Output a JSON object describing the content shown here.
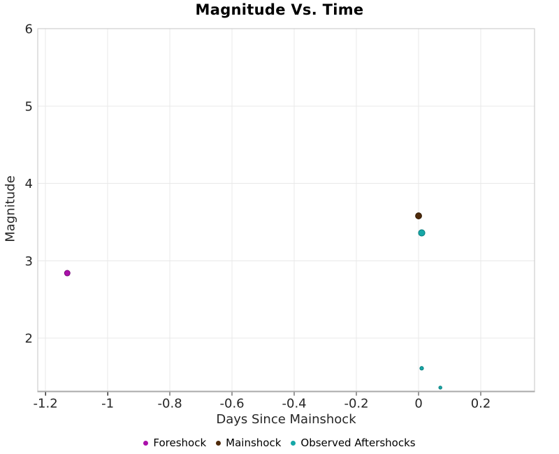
{
  "chart_data": {
    "type": "scatter",
    "title": "Magnitude Vs. Time",
    "xlabel": "Days Since Mainshock",
    "ylabel": "Magnitude",
    "xlim": [
      -1.225,
      0.373
    ],
    "ylim": [
      1.31,
      6
    ],
    "grid": true,
    "legend_position": "bottom-center",
    "x_ticks": [
      {
        "v": -1.2,
        "label": "-1.2"
      },
      {
        "v": -1.0,
        "label": "-1"
      },
      {
        "v": -0.8,
        "label": "-0.8"
      },
      {
        "v": -0.6,
        "label": "-0.6"
      },
      {
        "v": -0.4,
        "label": "-0.4"
      },
      {
        "v": -0.2,
        "label": "-0.2"
      },
      {
        "v": 0.0,
        "label": "0"
      },
      {
        "v": 0.2,
        "label": "0.2"
      }
    ],
    "y_ticks": [
      {
        "v": 2,
        "label": "2"
      },
      {
        "v": 3,
        "label": "3"
      },
      {
        "v": 4,
        "label": "4"
      },
      {
        "v": 5,
        "label": "5"
      },
      {
        "v": 6,
        "label": "6"
      }
    ],
    "series": [
      {
        "name": "Foreshock",
        "color": "#ab10ab",
        "stroke": "#7a0b7a",
        "points": [
          {
            "x": -1.13,
            "y": 2.84,
            "r": 4.0
          }
        ]
      },
      {
        "name": "Mainshock",
        "color": "#4f2a0a",
        "stroke": "#2e1903",
        "points": [
          {
            "x": 0.0,
            "y": 3.58,
            "r": 4.4
          }
        ]
      },
      {
        "name": "Observed Aftershocks",
        "color": "#16a7a7",
        "stroke": "#0b7d7d",
        "points": [
          {
            "x": 0.01,
            "y": 3.36,
            "r": 4.6
          },
          {
            "x": 0.01,
            "y": 1.61,
            "r": 2.6
          },
          {
            "x": 0.07,
            "y": 1.36,
            "r": 2.2
          }
        ]
      }
    ],
    "colors": {
      "grid": "#e8e8e8",
      "border": "#c6c6c6",
      "axis_line": "#a9a9a9",
      "tick": "#333333",
      "text": "#262626"
    }
  }
}
